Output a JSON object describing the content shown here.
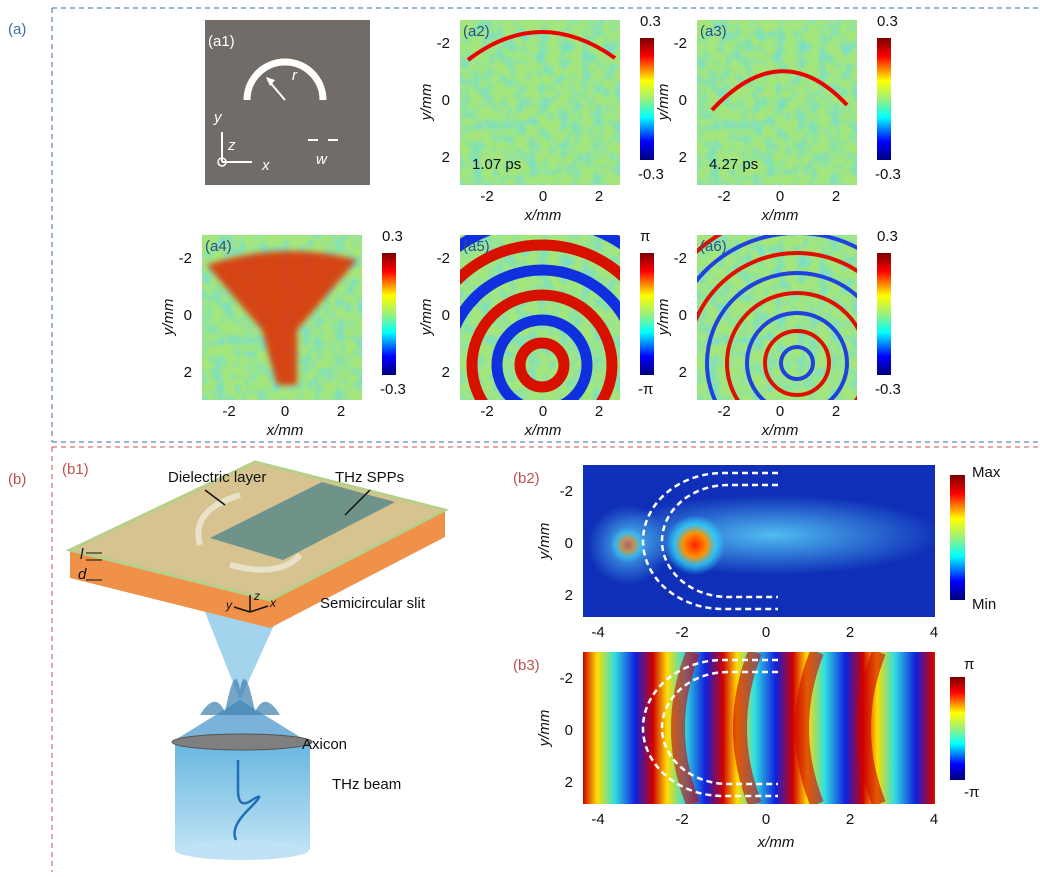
{
  "section_labels": [
    "(a)",
    "(b)"
  ],
  "a1": {
    "label": "(a1)",
    "r": "r",
    "w": "w",
    "axes": [
      "y",
      "z",
      "x"
    ]
  },
  "maps": [
    {
      "label": "(a2)",
      "xlabel": "x/mm",
      "ylabel": "y/mm",
      "xticks": [
        "-2",
        "0",
        "2"
      ],
      "yticks": [
        "-2",
        "0",
        "2"
      ],
      "cbar": [
        "0.3",
        "-0.3"
      ],
      "time": "1.07 ps"
    },
    {
      "label": "(a3)",
      "xlabel": "x/mm",
      "ylabel": "y/mm",
      "xticks": [
        "-2",
        "0",
        "2"
      ],
      "yticks": [
        "-2",
        "0",
        "2"
      ],
      "cbar": [
        "0.3",
        "-0.3"
      ],
      "time": "4.27 ps"
    },
    {
      "label": "(a4)",
      "xlabel": "x/mm",
      "ylabel": "y/mm",
      "xticks": [
        "-2",
        "0",
        "2"
      ],
      "yticks": [
        "-2",
        "0",
        "2"
      ],
      "cbar": [
        "0.3",
        "-0.3"
      ]
    },
    {
      "label": "(a5)",
      "xlabel": "x/mm",
      "ylabel": "y/mm",
      "xticks": [
        "-2",
        "0",
        "2"
      ],
      "yticks": [
        "-2",
        "0",
        "2"
      ],
      "cbar": [
        "π",
        "-π"
      ]
    },
    {
      "label": "(a6)",
      "xlabel": "x/mm",
      "ylabel": "y/mm",
      "xticks": [
        "-2",
        "0",
        "2"
      ],
      "yticks": [
        "-2",
        "0",
        "2"
      ],
      "cbar": [
        "0.3",
        "-0.3"
      ]
    }
  ],
  "b1": {
    "label": "(b1)",
    "dielectric": "Dielectric layer",
    "spp": "THz SPPs",
    "l": "l",
    "d": "d",
    "slit": "Semicircular slit",
    "axes": [
      "y",
      "z",
      "x"
    ],
    "axicon": "Axicon",
    "beam": "THz beam"
  },
  "b_maps": [
    {
      "label": "(b2)",
      "ylabel": "y/mm",
      "xticks": [
        "-4",
        "-2",
        "0",
        "2",
        "4"
      ],
      "yticks": [
        "-2",
        "0",
        "2"
      ],
      "cbar": [
        "Max",
        "Min"
      ]
    },
    {
      "label": "(b3)",
      "xlabel": "x/mm",
      "ylabel": "y/mm",
      "xticks": [
        "-4",
        "-2",
        "0",
        "2",
        "4"
      ],
      "yticks": [
        "-2",
        "0",
        "2"
      ],
      "cbar": [
        "π",
        "-π"
      ]
    }
  ]
}
